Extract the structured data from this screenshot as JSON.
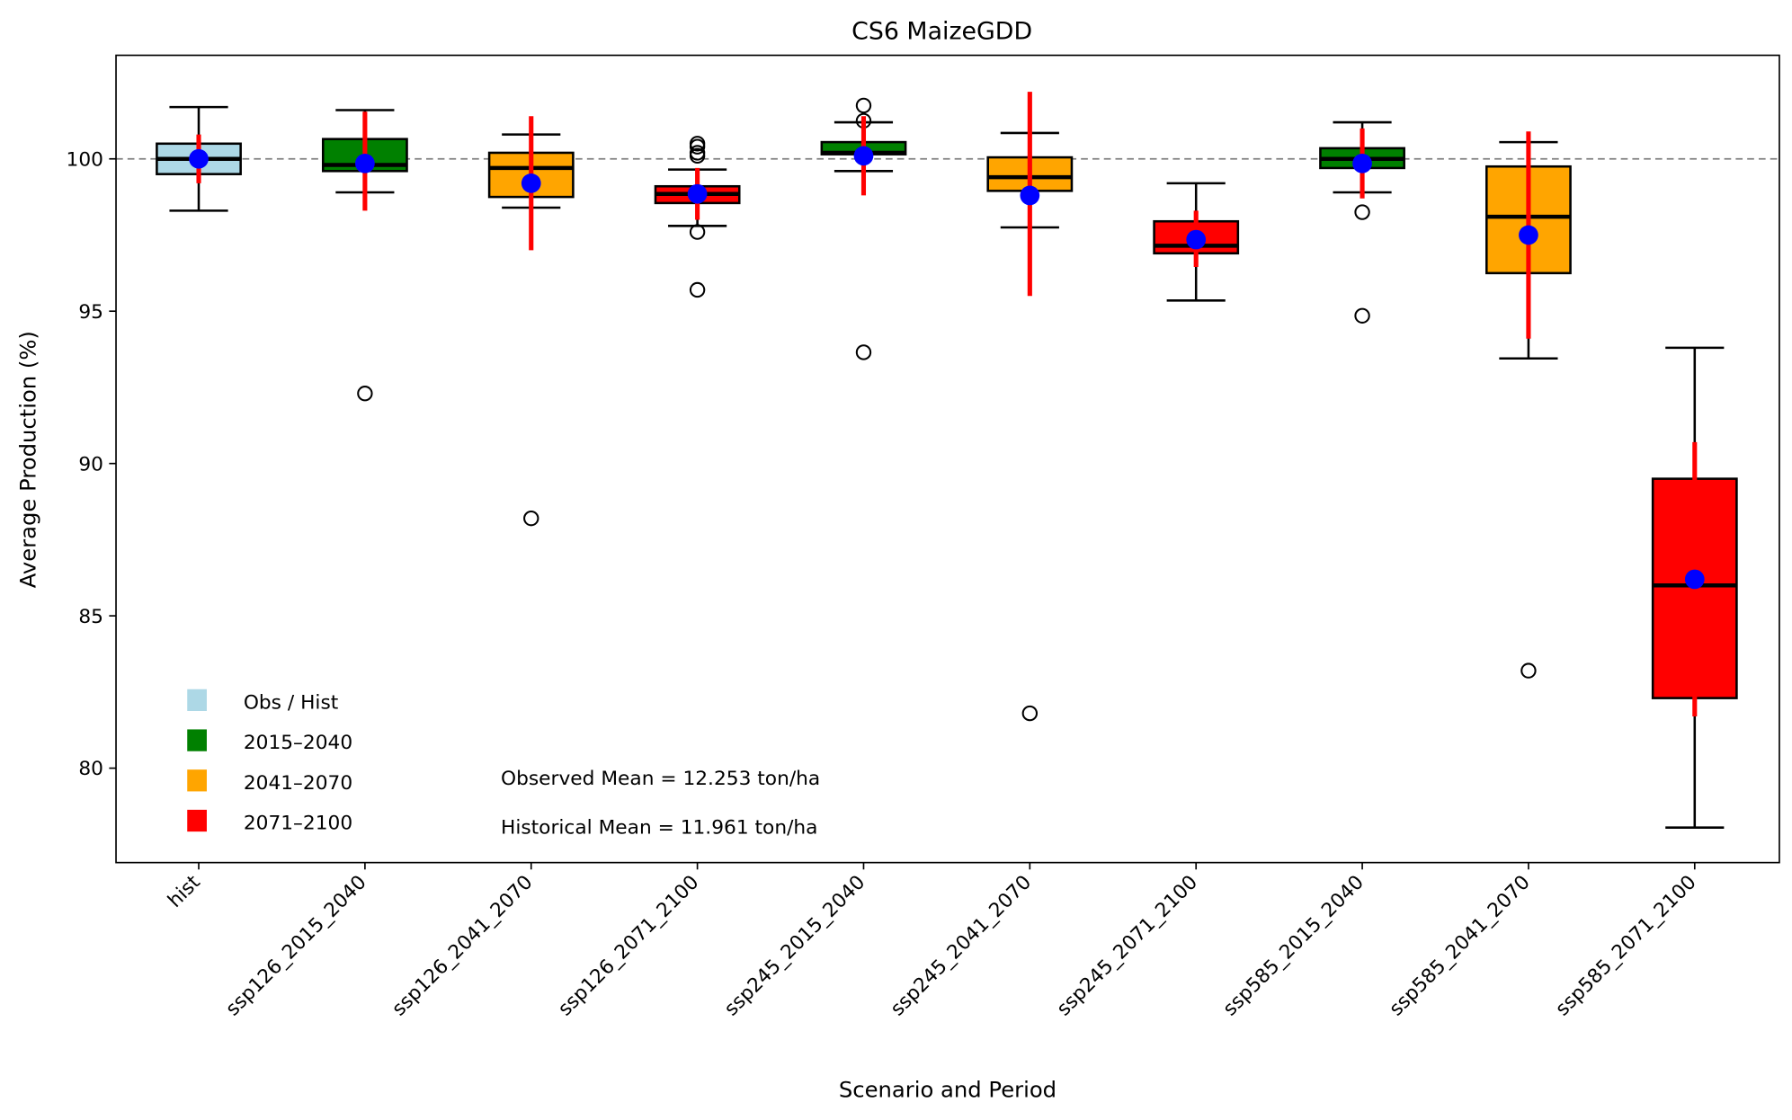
{
  "chart_data": {
    "type": "box",
    "title": "CS6 MaizeGDD",
    "xlabel": "Scenario and Period",
    "ylabel": "Average Production (%)",
    "ylim": [
      76.9,
      103.4
    ],
    "yticks": [
      80,
      85,
      90,
      95,
      100
    ],
    "reference_line": 100,
    "grid": false,
    "categories": [
      "hist",
      "ssp126_2015_2040",
      "ssp126_2041_2070",
      "ssp126_2071_2100",
      "ssp245_2015_2040",
      "ssp245_2041_2070",
      "ssp245_2071_2100",
      "ssp585_2015_2040",
      "ssp585_2041_2070",
      "ssp585_2071_2100"
    ],
    "boxes": [
      {
        "category": "hist",
        "period": "Obs / Hist",
        "whisker_low": 98.3,
        "q1": 99.5,
        "median": 100.0,
        "q3": 100.5,
        "whisker_high": 101.7,
        "mean": 100.0,
        "ci_low": 99.2,
        "ci_high": 100.8,
        "outliers": []
      },
      {
        "category": "ssp126_2015_2040",
        "period": "2015–2040",
        "whisker_low": 98.9,
        "q1": 99.6,
        "median": 99.8,
        "q3": 100.65,
        "whisker_high": 101.6,
        "mean": 99.85,
        "ci_low": 98.3,
        "ci_high": 101.55,
        "outliers": [
          92.3
        ]
      },
      {
        "category": "ssp126_2041_2070",
        "period": "2041–2070",
        "whisker_low": 98.4,
        "q1": 98.75,
        "median": 99.7,
        "q3": 100.2,
        "whisker_high": 100.8,
        "mean": 99.2,
        "ci_low": 97.0,
        "ci_high": 101.4,
        "outliers": [
          88.2
        ]
      },
      {
        "category": "ssp126_2071_2100",
        "period": "2071–2100",
        "whisker_low": 97.8,
        "q1": 98.55,
        "median": 98.85,
        "q3": 99.1,
        "whisker_high": 99.65,
        "mean": 98.85,
        "ci_low": 98.0,
        "ci_high": 99.7,
        "outliers": [
          100.5,
          100.4,
          100.2,
          100.1,
          97.6,
          95.7
        ]
      },
      {
        "category": "ssp245_2015_2040",
        "period": "2015–2040",
        "whisker_low": 99.6,
        "q1": 100.15,
        "median": 100.2,
        "q3": 100.55,
        "whisker_high": 101.2,
        "mean": 100.1,
        "ci_low": 98.8,
        "ci_high": 101.4,
        "outliers": [
          101.75,
          101.25,
          93.65
        ]
      },
      {
        "category": "ssp245_2041_2070",
        "period": "2041–2070",
        "whisker_low": 97.75,
        "q1": 98.95,
        "median": 99.4,
        "q3": 100.05,
        "whisker_high": 100.85,
        "mean": 98.8,
        "ci_low": 95.5,
        "ci_high": 102.2,
        "outliers": [
          81.8
        ]
      },
      {
        "category": "ssp245_2071_2100",
        "period": "2071–2100",
        "whisker_low": 95.35,
        "q1": 96.9,
        "median": 97.15,
        "q3": 97.95,
        "whisker_high": 99.2,
        "mean": 97.35,
        "ci_low": 96.45,
        "ci_high": 98.3,
        "outliers": []
      },
      {
        "category": "ssp585_2015_2040",
        "period": "2015–2040",
        "whisker_low": 98.9,
        "q1": 99.7,
        "median": 100.0,
        "q3": 100.35,
        "whisker_high": 101.2,
        "mean": 99.85,
        "ci_low": 98.7,
        "ci_high": 101.0,
        "outliers": [
          98.25,
          94.85
        ]
      },
      {
        "category": "ssp585_2041_2070",
        "period": "2041–2070",
        "whisker_low": 93.45,
        "q1": 96.25,
        "median": 98.1,
        "q3": 99.75,
        "whisker_high": 100.55,
        "mean": 97.5,
        "ci_low": 94.1,
        "ci_high": 100.9,
        "outliers": [
          83.2
        ]
      },
      {
        "category": "ssp585_2071_2100",
        "period": "2071–2100",
        "whisker_low": 78.05,
        "q1": 82.3,
        "median": 86.0,
        "q3": 89.5,
        "whisker_high": 93.8,
        "mean": 86.2,
        "ci_low": 81.7,
        "ci_high": 90.7,
        "outliers": []
      }
    ],
    "legend": {
      "placement": "lower-left",
      "entries": [
        {
          "label": "Obs / Hist",
          "color": "#add8e6"
        },
        {
          "label": "2015–2040",
          "color": "#008000"
        },
        {
          "label": "2041–2070",
          "color": "#ffa500"
        },
        {
          "label": "2071–2100",
          "color": "#ff0000"
        }
      ]
    },
    "annotations": [
      "Observed Mean = 12.253 ton/ha",
      "Historical Mean = 11.961 ton/ha"
    ],
    "colors": {
      "Obs / Hist": "#add8e6",
      "2015–2040": "#008000",
      "2041–2070": "#ffa500",
      "2071–2100": "#ff0000",
      "mean_marker": "#0000ff",
      "ci_line": "#ff0000",
      "reference_line": "#808080"
    }
  }
}
